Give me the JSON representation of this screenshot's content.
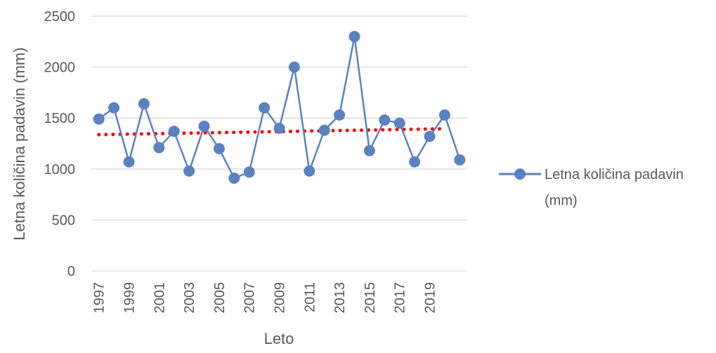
{
  "chart_data": {
    "type": "line",
    "title": "",
    "xlabel": "Leto",
    "ylabel": "Letna količina padavin (mm)",
    "ylim": [
      0,
      2500
    ],
    "yticks": [
      "0",
      "500",
      "1000",
      "1500",
      "2000",
      "2500"
    ],
    "ytick_values": [
      0,
      500,
      1000,
      1500,
      2000,
      2500
    ],
    "categories": [
      "1997",
      "1998",
      "1999",
      "2000",
      "2001",
      "2002",
      "2003",
      "2004",
      "2005",
      "2006",
      "2007",
      "2008",
      "2009",
      "2010",
      "2011",
      "2012",
      "2013",
      "2014",
      "2015",
      "2016",
      "2017",
      "2018",
      "2019",
      "2020",
      "2021"
    ],
    "xtick_labels": [
      "1997",
      "1999",
      "2001",
      "2003",
      "2005",
      "2007",
      "2009",
      "2011",
      "2013",
      "2015",
      "2017",
      "2019"
    ],
    "series": [
      {
        "name": "Letna količina padavin (mm)",
        "color": "#5B82C0",
        "values": [
          1490,
          1600,
          1070,
          1640,
          1210,
          1370,
          980,
          1420,
          1200,
          910,
          970,
          1600,
          1400,
          2000,
          980,
          1380,
          1530,
          2300,
          1180,
          1480,
          1450,
          1070,
          1320,
          1530,
          1090
        ]
      }
    ],
    "trendline": {
      "type": "linear",
      "color": "#FF0000",
      "style": "dotted",
      "start_value": 1337,
      "end_value": 1395
    },
    "legend": {
      "position": "right",
      "line1": "Letna količina padavin",
      "line2": "(mm)"
    },
    "grid": true
  }
}
